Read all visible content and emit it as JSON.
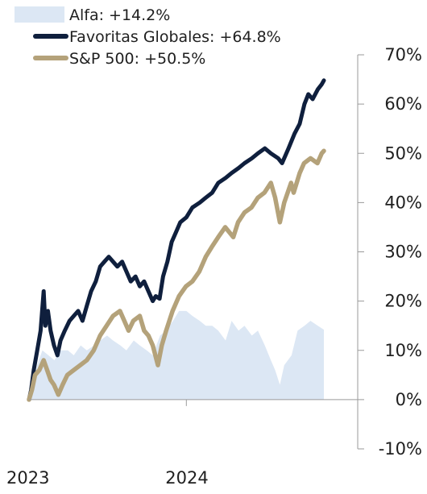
{
  "chart_data": {
    "type": "line",
    "title": "",
    "xlabel": "",
    "ylabel": "",
    "ylim": [
      -10,
      70
    ],
    "y_ticks": [
      -10,
      0,
      10,
      20,
      30,
      40,
      50,
      60,
      70
    ],
    "y_tick_labels": [
      "-10%",
      "0%",
      "10%",
      "20%",
      "30%",
      "40%",
      "50%",
      "60%",
      "70%"
    ],
    "x_range": [
      "2023-01-01",
      "2024-11-30"
    ],
    "x_tick_labels": [
      {
        "date": "2023-01-01",
        "label": "2023"
      },
      {
        "date": "2024-01-01",
        "label": "2024"
      }
    ],
    "legend_position": "top-left",
    "grid": false,
    "series": [
      {
        "name": "Alfa: +14.2%",
        "style": "area",
        "color": "#dce7f4",
        "points": [
          [
            "2023-01-01",
            0
          ],
          [
            "2023-01-10",
            3
          ],
          [
            "2023-01-20",
            7
          ],
          [
            "2023-02-01",
            10
          ],
          [
            "2023-02-15",
            9
          ],
          [
            "2023-03-01",
            8
          ],
          [
            "2023-03-15",
            10
          ],
          [
            "2023-04-01",
            10
          ],
          [
            "2023-04-15",
            9
          ],
          [
            "2023-05-01",
            11
          ],
          [
            "2023-05-15",
            10
          ],
          [
            "2023-06-01",
            11
          ],
          [
            "2023-06-15",
            12
          ],
          [
            "2023-07-01",
            13
          ],
          [
            "2023-07-15",
            12
          ],
          [
            "2023-08-01",
            11
          ],
          [
            "2023-08-15",
            10
          ],
          [
            "2023-09-01",
            12
          ],
          [
            "2023-09-15",
            11
          ],
          [
            "2023-10-01",
            10
          ],
          [
            "2023-10-15",
            9
          ],
          [
            "2023-11-01",
            13
          ],
          [
            "2023-11-15",
            14
          ],
          [
            "2023-12-01",
            16
          ],
          [
            "2023-12-15",
            18
          ],
          [
            "2024-01-01",
            18
          ],
          [
            "2024-01-15",
            17
          ],
          [
            "2024-02-01",
            16
          ],
          [
            "2024-02-15",
            15
          ],
          [
            "2024-03-01",
            15
          ],
          [
            "2024-03-15",
            14
          ],
          [
            "2024-04-01",
            12
          ],
          [
            "2024-04-15",
            16
          ],
          [
            "2024-05-01",
            14
          ],
          [
            "2024-05-15",
            15
          ],
          [
            "2024-06-01",
            13
          ],
          [
            "2024-06-15",
            14
          ],
          [
            "2024-07-01",
            11
          ],
          [
            "2024-07-15",
            8
          ],
          [
            "2024-07-25",
            6
          ],
          [
            "2024-08-05",
            3
          ],
          [
            "2024-08-15",
            7
          ],
          [
            "2024-09-01",
            9
          ],
          [
            "2024-09-15",
            14
          ],
          [
            "2024-10-01",
            15
          ],
          [
            "2024-10-15",
            16
          ],
          [
            "2024-11-01",
            15
          ],
          [
            "2024-11-15",
            14.2
          ]
        ]
      },
      {
        "name": "Favoritas Globales: +64.8%",
        "style": "line",
        "color": "#0f1f3d",
        "points": [
          [
            "2023-01-01",
            0
          ],
          [
            "2023-01-06",
            2
          ],
          [
            "2023-01-12",
            6
          ],
          [
            "2023-01-20",
            10
          ],
          [
            "2023-01-28",
            14
          ],
          [
            "2023-02-04",
            22
          ],
          [
            "2023-02-08",
            15
          ],
          [
            "2023-02-14",
            18
          ],
          [
            "2023-02-20",
            14
          ],
          [
            "2023-02-28",
            11
          ],
          [
            "2023-03-08",
            9
          ],
          [
            "2023-03-15",
            12
          ],
          [
            "2023-03-25",
            14
          ],
          [
            "2023-04-05",
            16
          ],
          [
            "2023-04-15",
            17
          ],
          [
            "2023-04-25",
            18
          ],
          [
            "2023-05-05",
            16
          ],
          [
            "2023-05-15",
            19
          ],
          [
            "2023-05-25",
            22
          ],
          [
            "2023-06-05",
            24
          ],
          [
            "2023-06-15",
            27
          ],
          [
            "2023-06-25",
            28
          ],
          [
            "2023-07-05",
            29
          ],
          [
            "2023-07-15",
            28
          ],
          [
            "2023-07-25",
            27
          ],
          [
            "2023-08-05",
            28
          ],
          [
            "2023-08-15",
            26
          ],
          [
            "2023-08-25",
            24
          ],
          [
            "2023-09-05",
            25
          ],
          [
            "2023-09-15",
            23
          ],
          [
            "2023-09-25",
            24
          ],
          [
            "2023-10-05",
            22
          ],
          [
            "2023-10-15",
            20
          ],
          [
            "2023-10-22",
            21
          ],
          [
            "2023-10-31",
            20.5
          ],
          [
            "2023-11-08",
            25
          ],
          [
            "2023-11-18",
            28
          ],
          [
            "2023-11-28",
            32
          ],
          [
            "2023-12-08",
            34
          ],
          [
            "2023-12-18",
            36
          ],
          [
            "2024-01-01",
            37
          ],
          [
            "2024-01-15",
            39
          ],
          [
            "2024-02-01",
            40
          ],
          [
            "2024-02-15",
            41
          ],
          [
            "2024-03-01",
            42
          ],
          [
            "2024-03-15",
            44
          ],
          [
            "2024-04-01",
            45
          ],
          [
            "2024-04-15",
            46
          ],
          [
            "2024-05-01",
            47
          ],
          [
            "2024-05-15",
            48
          ],
          [
            "2024-06-01",
            49
          ],
          [
            "2024-06-15",
            50
          ],
          [
            "2024-07-01",
            51
          ],
          [
            "2024-07-15",
            50
          ],
          [
            "2024-08-01",
            49
          ],
          [
            "2024-08-10",
            48
          ],
          [
            "2024-08-25",
            51
          ],
          [
            "2024-09-08",
            54
          ],
          [
            "2024-09-20",
            56
          ],
          [
            "2024-10-01",
            60
          ],
          [
            "2024-10-10",
            62
          ],
          [
            "2024-10-20",
            61
          ],
          [
            "2024-11-01",
            63
          ],
          [
            "2024-11-10",
            64
          ],
          [
            "2024-11-15",
            64.8
          ]
        ]
      },
      {
        "name": "S&P 500: +50.5%",
        "style": "line",
        "color": "#b4a27a",
        "points": [
          [
            "2023-01-01",
            0
          ],
          [
            "2023-01-08",
            2
          ],
          [
            "2023-01-15",
            5
          ],
          [
            "2023-01-25",
            6
          ],
          [
            "2023-02-04",
            8
          ],
          [
            "2023-02-12",
            6
          ],
          [
            "2023-02-20",
            4
          ],
          [
            "2023-02-28",
            3
          ],
          [
            "2023-03-10",
            1
          ],
          [
            "2023-03-20",
            3
          ],
          [
            "2023-03-31",
            5
          ],
          [
            "2023-04-15",
            6
          ],
          [
            "2023-04-30",
            7
          ],
          [
            "2023-05-15",
            8
          ],
          [
            "2023-05-31",
            10
          ],
          [
            "2023-06-15",
            13
          ],
          [
            "2023-06-30",
            15
          ],
          [
            "2023-07-15",
            17
          ],
          [
            "2023-07-31",
            18
          ],
          [
            "2023-08-10",
            16
          ],
          [
            "2023-08-20",
            14
          ],
          [
            "2023-08-31",
            16
          ],
          [
            "2023-09-15",
            17
          ],
          [
            "2023-09-25",
            14
          ],
          [
            "2023-10-05",
            13
          ],
          [
            "2023-10-15",
            11
          ],
          [
            "2023-10-27",
            7
          ],
          [
            "2023-11-05",
            11
          ],
          [
            "2023-11-15",
            14
          ],
          [
            "2023-11-30",
            18
          ],
          [
            "2023-12-15",
            21
          ],
          [
            "2023-12-31",
            23
          ],
          [
            "2024-01-15",
            24
          ],
          [
            "2024-01-31",
            26
          ],
          [
            "2024-02-15",
            29
          ],
          [
            "2024-02-29",
            31
          ],
          [
            "2024-03-15",
            33
          ],
          [
            "2024-03-31",
            35
          ],
          [
            "2024-04-19",
            33
          ],
          [
            "2024-04-30",
            36
          ],
          [
            "2024-05-15",
            38
          ],
          [
            "2024-05-31",
            39
          ],
          [
            "2024-06-15",
            41
          ],
          [
            "2024-06-30",
            42
          ],
          [
            "2024-07-15",
            44
          ],
          [
            "2024-07-25",
            41
          ],
          [
            "2024-08-05",
            36
          ],
          [
            "2024-08-15",
            40
          ],
          [
            "2024-08-31",
            44
          ],
          [
            "2024-09-06",
            42
          ],
          [
            "2024-09-20",
            46
          ],
          [
            "2024-09-30",
            48
          ],
          [
            "2024-10-15",
            49
          ],
          [
            "2024-10-31",
            48
          ],
          [
            "2024-11-10",
            50
          ],
          [
            "2024-11-15",
            50.5
          ]
        ]
      }
    ]
  }
}
